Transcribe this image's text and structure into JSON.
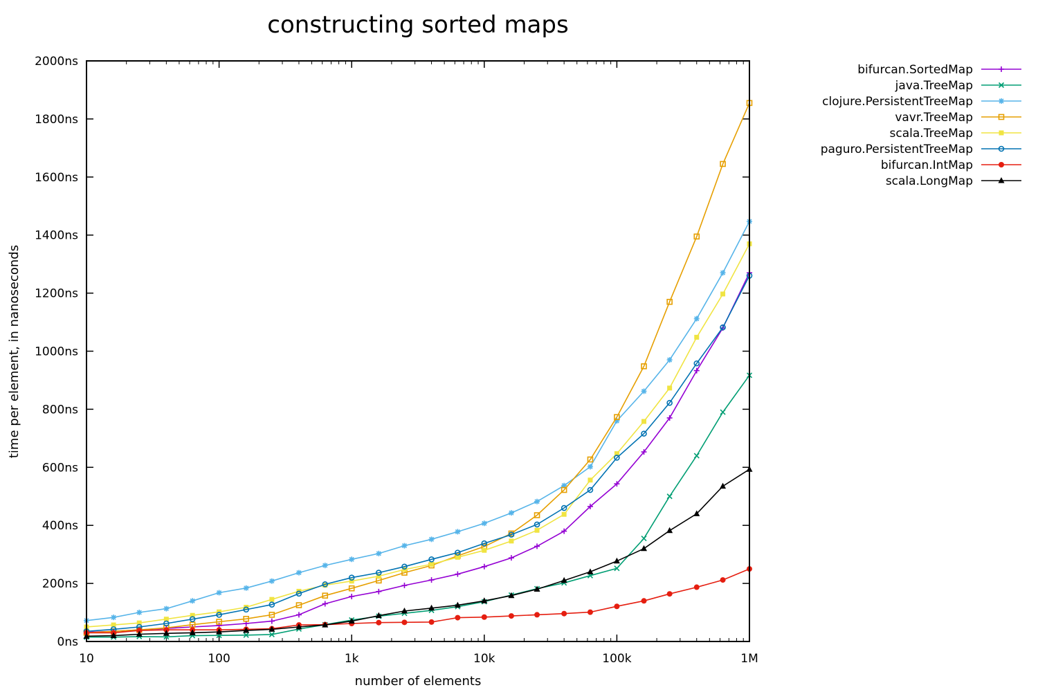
{
  "chart_data": {
    "type": "line",
    "title": "constructing sorted maps",
    "xlabel": "number of elements",
    "ylabel": "time per element, in nanoseconds",
    "xscale": "log",
    "xlim": [
      10,
      1000000
    ],
    "ylim": [
      0,
      2000
    ],
    "grid": false,
    "legend_position": "top-right-outside",
    "xticks": [
      {
        "value": 10,
        "label": "10"
      },
      {
        "value": 100,
        "label": "100"
      },
      {
        "value": 1000,
        "label": "1k"
      },
      {
        "value": 10000,
        "label": "10k"
      },
      {
        "value": 100000,
        "label": "100k"
      },
      {
        "value": 1000000,
        "label": "1M"
      }
    ],
    "yticks": [
      {
        "value": 0,
        "label": "0ns"
      },
      {
        "value": 200,
        "label": "200ns"
      },
      {
        "value": 400,
        "label": "400ns"
      },
      {
        "value": 600,
        "label": "600ns"
      },
      {
        "value": 800,
        "label": "800ns"
      },
      {
        "value": 1000,
        "label": "1000ns"
      },
      {
        "value": 1200,
        "label": "1200ns"
      },
      {
        "value": 1400,
        "label": "1400ns"
      },
      {
        "value": 1600,
        "label": "1600ns"
      },
      {
        "value": 1800,
        "label": "1800ns"
      },
      {
        "value": 2000,
        "label": "2000ns"
      }
    ],
    "x": [
      10,
      16,
      25,
      40,
      63,
      100,
      160,
      250,
      400,
      630,
      1000,
      1600,
      2500,
      4000,
      6300,
      10000,
      16000,
      25000,
      40000,
      63000,
      100000,
      160000,
      250000,
      400000,
      630000,
      1000000
    ],
    "series": [
      {
        "name": "bifurcan.SortedMap",
        "color": "#9400d3",
        "marker": "plus",
        "values": [
          32,
          35,
          40,
          45,
          50,
          55,
          62,
          70,
          92,
          130,
          155,
          172,
          193,
          212,
          232,
          258,
          288,
          328,
          380,
          465,
          543,
          653,
          770,
          933,
          1080,
          1270
        ]
      },
      {
        "name": "java.TreeMap",
        "color": "#009e73",
        "marker": "x",
        "values": [
          15,
          15,
          17,
          16,
          20,
          21,
          22,
          24,
          43,
          58,
          74,
          87,
          97,
          107,
          120,
          137,
          160,
          182,
          202,
          227,
          252,
          355,
          500,
          640,
          790,
          917
        ]
      },
      {
        "name": "clojure.PersistentTreeMap",
        "color": "#56b4e9",
        "marker": "star",
        "values": [
          72,
          83,
          100,
          113,
          140,
          168,
          184,
          208,
          237,
          262,
          283,
          303,
          330,
          352,
          378,
          407,
          443,
          482,
          537,
          602,
          760,
          862,
          970,
          1112,
          1270,
          1447
        ]
      },
      {
        "name": "vavr.TreeMap",
        "color": "#e69f00",
        "marker": "square-open",
        "values": [
          30,
          35,
          40,
          47,
          58,
          68,
          78,
          92,
          125,
          158,
          183,
          210,
          237,
          262,
          295,
          327,
          372,
          435,
          522,
          627,
          773,
          948,
          1170,
          1395,
          1645,
          1855
        ]
      },
      {
        "name": "scala.TreeMap",
        "color": "#f0e442",
        "marker": "square-filled",
        "values": [
          50,
          57,
          64,
          77,
          90,
          102,
          118,
          145,
          173,
          194,
          208,
          225,
          248,
          266,
          290,
          314,
          346,
          383,
          438,
          556,
          647,
          758,
          873,
          1048,
          1197,
          1370
        ]
      },
      {
        "name": "paguro.PersistentTreeMap",
        "color": "#0072b2",
        "marker": "circle-open",
        "values": [
          35,
          42,
          50,
          62,
          77,
          92,
          110,
          127,
          165,
          197,
          220,
          237,
          258,
          283,
          306,
          338,
          368,
          403,
          460,
          522,
          633,
          716,
          822,
          958,
          1082,
          1260
        ]
      },
      {
        "name": "bifurcan.IntMap",
        "color": "#e51e10",
        "marker": "circle-filled",
        "values": [
          30,
          30,
          38,
          40,
          40,
          40,
          42,
          44,
          57,
          58,
          62,
          65,
          66,
          67,
          82,
          84,
          88,
          92,
          96,
          101,
          121,
          140,
          164,
          187,
          212,
          250
        ]
      },
      {
        "name": "scala.LongMap",
        "color": "#000000",
        "marker": "triangle",
        "values": [
          18,
          20,
          25,
          28,
          30,
          33,
          38,
          42,
          50,
          57,
          70,
          89,
          105,
          115,
          125,
          140,
          158,
          180,
          210,
          240,
          277,
          320,
          382,
          440,
          535,
          593
        ]
      }
    ]
  }
}
